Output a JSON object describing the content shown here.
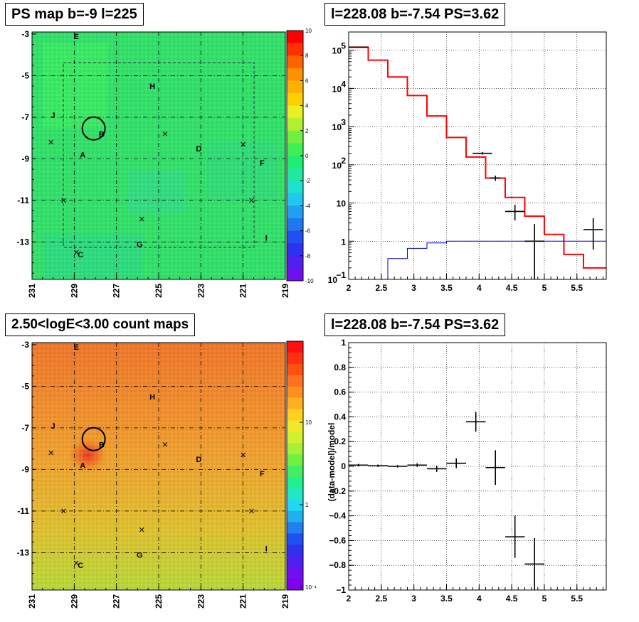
{
  "panels": {
    "ps_map": {
      "title": "PS map b=-9 l=225",
      "x_ticks": [
        "231",
        "229",
        "227",
        "225",
        "223",
        "221",
        "219"
      ],
      "y_ticks": [
        "-3",
        "-5",
        "-7",
        "-9",
        "-11",
        "-13"
      ],
      "color_ticks": [
        "10",
        "8",
        "6",
        "4",
        "2",
        "0",
        "-2",
        "-4",
        "-6",
        "-8",
        "-10"
      ]
    },
    "spectrum": {
      "title": "l=228.08 b=-7.54 PS=3.62"
    },
    "count_map": {
      "title": "2.50<logE<3.00 count maps",
      "x_ticks": [
        "231",
        "229",
        "227",
        "225",
        "223",
        "221",
        "219"
      ],
      "y_ticks": [
        "-3",
        "-5",
        "-7",
        "-9",
        "-11",
        "-13"
      ],
      "color_ticks": [
        "10",
        "1",
        "10⁻¹"
      ]
    },
    "residual": {
      "title": "l=228.08 b=-7.54 PS=3.62",
      "ylabel": "(data-model)/model"
    }
  },
  "sources": [
    {
      "name": "E",
      "l": 228.9,
      "b": -3.1
    },
    {
      "name": "H",
      "l": 225.3,
      "b": -5.5
    },
    {
      "name": "J",
      "l": 230.0,
      "b": -6.9
    },
    {
      "name": "B",
      "l": 227.7,
      "b": -7.8
    },
    {
      "name": "D",
      "l": 223.1,
      "b": -8.5
    },
    {
      "name": "A",
      "l": 228.6,
      "b": -8.8
    },
    {
      "name": "F",
      "l": 220.1,
      "b": -9.2
    },
    {
      "name": "I",
      "l": 219.9,
      "b": -12.8
    },
    {
      "name": "G",
      "l": 225.9,
      "b": -13.1
    },
    {
      "name": "C",
      "l": 228.7,
      "b": -13.6
    }
  ],
  "crosses": [
    {
      "l": 230.1,
      "b": -8.2
    },
    {
      "l": 224.7,
      "b": -7.8
    },
    {
      "l": 221.0,
      "b": -8.3
    },
    {
      "l": 229.5,
      "b": -11.0
    },
    {
      "l": 220.6,
      "b": -11.0
    },
    {
      "l": 225.8,
      "b": -11.9
    },
    {
      "l": 228.9,
      "b": -13.5
    }
  ],
  "target_circle": {
    "l": 228.08,
    "b": -7.54
  },
  "chart_data": [
    {
      "type": "heatmap",
      "title": "PS map b=-9 l=225",
      "xlim": [
        231,
        219
      ],
      "ylim": [
        -14.8,
        -2.9
      ],
      "zlim": [
        -10,
        10
      ],
      "colorbar_label_values": [
        10,
        8,
        6,
        4,
        2,
        0,
        -2,
        -4,
        -6,
        -8,
        -10
      ]
    },
    {
      "type": "line",
      "title": "l=228.08 b=-7.54 PS=3.62",
      "xlim": [
        2,
        5.95
      ],
      "ylim": [
        0.1,
        300000
      ],
      "ylog": true,
      "x_ticks": [
        2,
        2.5,
        3,
        3.5,
        4,
        4.5,
        5,
        5.5
      ],
      "y_ticks": [
        0.1,
        1,
        10,
        100,
        1000,
        10000,
        100000
      ],
      "grid": true,
      "series": [
        {
          "style": "red-histogram",
          "edges": [
            2,
            2.3,
            2.6,
            2.9,
            3.2,
            3.5,
            3.8,
            4.1,
            4.4,
            4.7,
            5.0,
            5.3,
            5.6,
            5.95
          ],
          "values": [
            120000,
            55000,
            20000,
            6500,
            1900,
            520,
            160,
            45,
            14,
            4.5,
            1.5,
            0.45,
            0.2
          ]
        },
        {
          "style": "blue-histogram",
          "edges": [
            2,
            2.3,
            2.6,
            2.9,
            3.2,
            3.5,
            3.8,
            4.1,
            4.4,
            4.7,
            5.0,
            5.3,
            5.6,
            5.95
          ],
          "values": [
            0.01,
            0.08,
            0.35,
            0.65,
            0.9,
            1.0,
            1.0,
            1.0,
            1.0,
            1.0,
            1.0,
            1.0,
            1.0
          ]
        },
        {
          "style": "black-errors",
          "points": [
            {
              "x": 2.15,
              "xerr": 0.15,
              "y": 120000,
              "ylo": 118000,
              "yhi": 122000
            },
            {
              "x": 4.05,
              "xerr": 0.15,
              "y": 200,
              "ylo": 185,
              "yhi": 215
            },
            {
              "x": 4.25,
              "xerr": 0.08,
              "y": 45,
              "ylo": 38,
              "yhi": 52
            },
            {
              "x": 4.55,
              "xerr": 0.15,
              "y": 6,
              "ylo": 3.5,
              "yhi": 9
            },
            {
              "x": 4.85,
              "xerr": 0.15,
              "y": 1,
              "ylo": 0.1,
              "yhi": 2.8
            },
            {
              "x": 5.75,
              "xerr": 0.15,
              "y": 2,
              "ylo": 0.6,
              "yhi": 4
            }
          ]
        }
      ]
    },
    {
      "type": "heatmap",
      "title": "2.50<logE<3.00 count maps",
      "xlim": [
        231,
        219
      ],
      "ylim": [
        -14.8,
        -2.9
      ],
      "zlog": true,
      "colorbar_label_values": [
        10,
        1,
        0.1
      ]
    },
    {
      "type": "scatter",
      "title": "l=228.08 b=-7.54 PS=3.62",
      "ylabel": "(data-model)/model",
      "xlim": [
        2,
        5.95
      ],
      "ylim": [
        -1,
        1
      ],
      "x_ticks": [
        2,
        2.5,
        3,
        3.5,
        4,
        4.5,
        5,
        5.5
      ],
      "y_ticks": [
        -1,
        -0.8,
        -0.6,
        -0.4,
        -0.2,
        0,
        0.2,
        0.4,
        0.6,
        0.8,
        1
      ],
      "grid": true,
      "points": [
        {
          "x": 2.15,
          "xerr": 0.15,
          "y": 0.01,
          "yerr": 0.01
        },
        {
          "x": 2.45,
          "xerr": 0.15,
          "y": 0.005,
          "yerr": 0.01
        },
        {
          "x": 2.75,
          "xerr": 0.15,
          "y": 0.0,
          "yerr": 0.01
        },
        {
          "x": 3.05,
          "xerr": 0.15,
          "y": 0.01,
          "yerr": 0.015
        },
        {
          "x": 3.35,
          "xerr": 0.15,
          "y": -0.02,
          "yerr": 0.025
        },
        {
          "x": 3.65,
          "xerr": 0.15,
          "y": 0.025,
          "yerr": 0.04
        },
        {
          "x": 3.95,
          "xerr": 0.15,
          "y": 0.36,
          "yerr": 0.08
        },
        {
          "x": 4.25,
          "xerr": 0.15,
          "y": -0.01,
          "yerr": 0.14
        },
        {
          "x": 4.55,
          "xerr": 0.15,
          "y": -0.57,
          "yerr": 0.17
        },
        {
          "x": 4.85,
          "xerr": 0.15,
          "y": -0.79,
          "yerr": 0.21
        }
      ]
    }
  ]
}
